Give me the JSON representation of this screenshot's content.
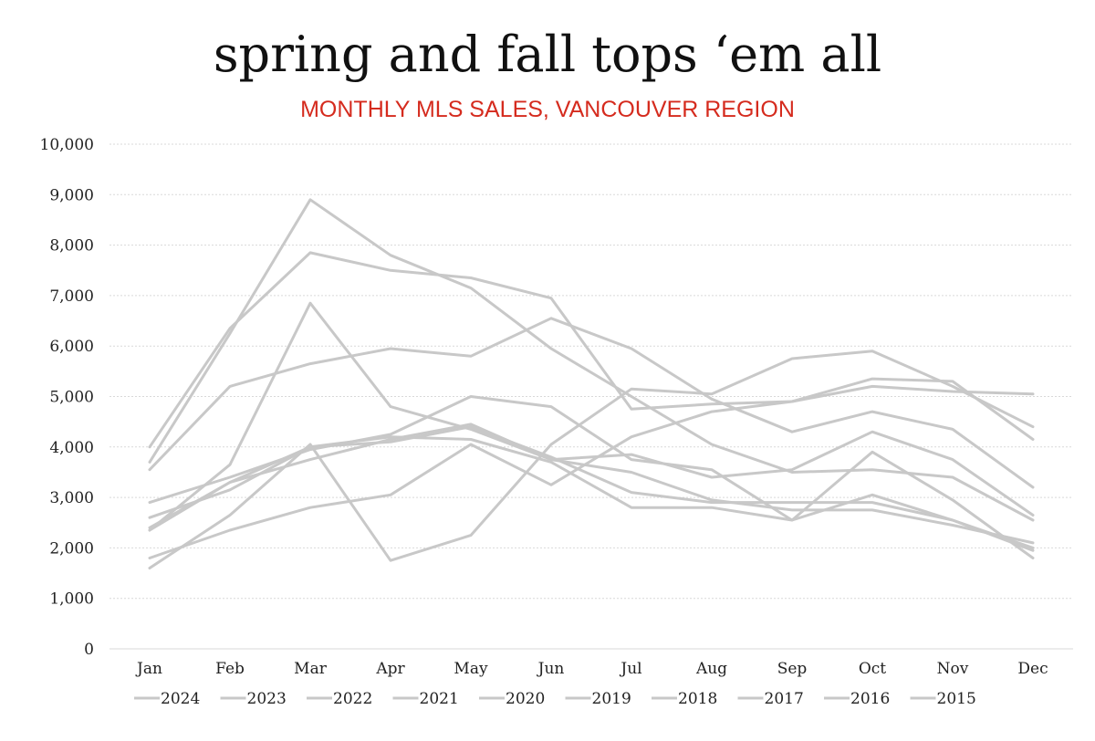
{
  "chart_data": {
    "type": "line",
    "title": "spring and fall tops ‘em all",
    "subtitle": "MONTHLY MLS SALES, VANCOUVER REGION",
    "xlabel": "",
    "ylabel": "",
    "ylim": [
      0,
      10000
    ],
    "yticks": [
      "0",
      "1,000",
      "2,000",
      "3,000",
      "4,000",
      "5,000",
      "6,000",
      "7,000",
      "8,000",
      "9,000",
      "10,000"
    ],
    "categories": [
      "Jan",
      "Feb",
      "Mar",
      "Apr",
      "May",
      "Jun",
      "Jul",
      "Aug",
      "Sep",
      "Oct",
      "Nov",
      "Dec"
    ],
    "grid": true,
    "legend_position": "bottom",
    "line_color": "#c8c8c8",
    "series": [
      {
        "name": "2024",
        "values": [
          2600,
          3150,
          4000,
          4100,
          4400,
          3800,
          3100,
          2900,
          2900,
          2900,
          2550,
          1950
        ]
      },
      {
        "name": "2023",
        "values": [
          2400,
          3300,
          3750,
          4150,
          4450,
          3750,
          3500,
          2950,
          2750,
          2750,
          2450,
          2100
        ]
      },
      {
        "name": "2022",
        "values": [
          2350,
          3650,
          6850,
          4800,
          4350,
          3750,
          3850,
          3400,
          3550,
          4300,
          3750,
          2650
        ]
      },
      {
        "name": "2021",
        "values": [
          3550,
          5200,
          5650,
          5950,
          5800,
          6550,
          5950,
          4950,
          4300,
          4700,
          4350,
          3200
        ]
      },
      {
        "name": "2020",
        "values": [
          1600,
          2650,
          4050,
          1750,
          2250,
          4050,
          5150,
          5050,
          5750,
          5900,
          5200,
          4400
        ]
      },
      {
        "name": "2019",
        "values": [
          1800,
          2350,
          2800,
          3050,
          4050,
          3250,
          4200,
          4700,
          4900,
          5350,
          5300,
          4150
        ]
      },
      {
        "name": "2018",
        "values": [
          2900,
          3400,
          3950,
          4250,
          5000,
          4800,
          3750,
          3550,
          2550,
          3900,
          2950,
          1800
        ]
      },
      {
        "name": "2017",
        "values": [
          2350,
          3300,
          4000,
          4200,
          4150,
          3700,
          2800,
          2800,
          2550,
          3050,
          2550,
          2000
        ]
      },
      {
        "name": "2016",
        "values": [
          3700,
          6250,
          8900,
          7800,
          7150,
          5950,
          5000,
          4050,
          3500,
          3550,
          3400,
          2550
        ]
      },
      {
        "name": "2015",
        "values": [
          4000,
          6350,
          7850,
          7500,
          7350,
          6950,
          4750,
          4850,
          4900,
          5200,
          5100,
          5050
        ]
      }
    ]
  }
}
